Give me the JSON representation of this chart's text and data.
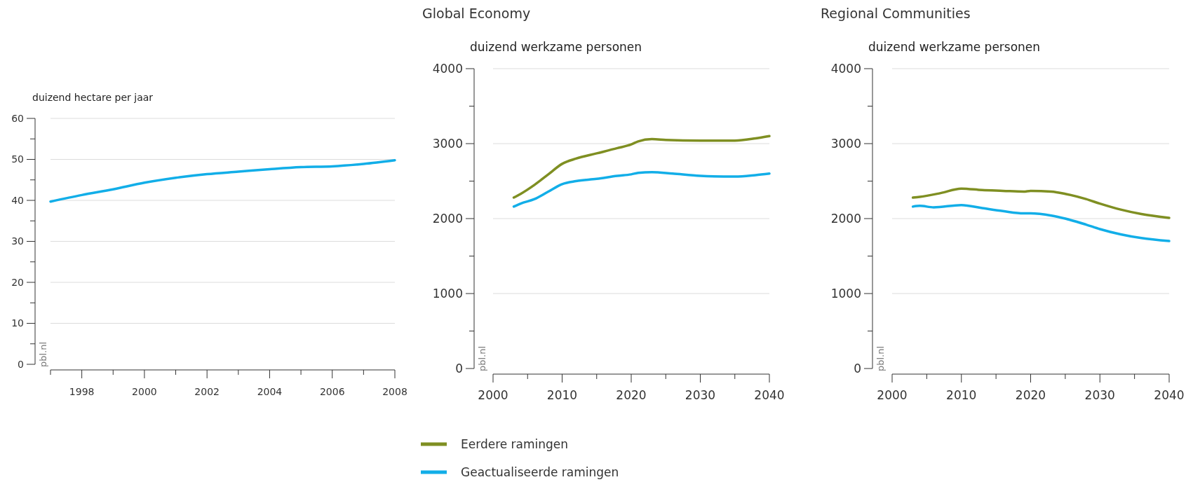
{
  "chart_data": [
    {
      "type": "line",
      "ylabel": "duizend hectare per jaar",
      "xlim": [
        1997,
        2008
      ],
      "xticks": [
        {
          "value": 1997,
          "label": null
        },
        1998,
        {
          "value": 1999,
          "label": null
        },
        2000,
        {
          "value": 2001,
          "label": null
        },
        2002,
        {
          "value": 2003,
          "label": null
        },
        2004,
        {
          "value": 2005,
          "label": null
        },
        2006,
        {
          "value": 2007,
          "label": null
        },
        2008
      ],
      "ylim": [
        0,
        60
      ],
      "yticks": [
        0,
        10,
        20,
        30,
        40,
        50,
        60
      ],
      "grid": "y",
      "legend": false,
      "annotations": [
        "pbl.nl"
      ],
      "series": [
        {
          "color": "#12aee8",
          "x": [
            1997,
            1998,
            1999,
            2000,
            2001,
            2002,
            2003,
            2004,
            2005,
            2006,
            2007,
            2008
          ],
          "values": [
            39.7,
            41.3,
            42.7,
            44.3,
            45.5,
            46.4,
            47.0,
            47.6,
            48.1,
            48.3,
            48.9,
            49.8
          ]
        }
      ]
    },
    {
      "type": "line",
      "title": "Global Economy",
      "ylabel": "duizend werkzame personen",
      "xlim": [
        2000,
        2040
      ],
      "xticks": [
        2000,
        {
          "value": 2005,
          "label": null
        },
        2010,
        {
          "value": 2015,
          "label": null
        },
        2020,
        {
          "value": 2025,
          "label": null
        },
        2030,
        {
          "value": 2035,
          "label": null
        },
        2040
      ],
      "ylim": [
        0,
        4000
      ],
      "yticks": [
        0,
        1000,
        2000,
        3000,
        4000
      ],
      "grid": "y",
      "legend": "bottom",
      "annotations": [
        "pbl.nl"
      ],
      "series": [
        {
          "name": "Eerdere ramingen",
          "color": "#7f8f22",
          "x": [
            2003,
            2004,
            2006,
            2008,
            2010,
            2012,
            2015,
            2018,
            2020,
            2021,
            2023,
            2025,
            2030,
            2035,
            2038,
            2040
          ],
          "values": [
            2280,
            2330,
            2450,
            2590,
            2730,
            2800,
            2870,
            2940,
            2990,
            3030,
            3060,
            3050,
            3040,
            3040,
            3070,
            3100
          ]
        },
        {
          "name": "Geactualiseerde ramingen",
          "color": "#12aee8",
          "x": [
            2003,
            2004,
            2006,
            2008,
            2010,
            2012,
            2015,
            2018,
            2020,
            2021,
            2023,
            2026,
            2030,
            2035,
            2038,
            2040
          ],
          "values": [
            2160,
            2200,
            2260,
            2360,
            2460,
            2500,
            2530,
            2570,
            2590,
            2610,
            2620,
            2600,
            2570,
            2560,
            2580,
            2600
          ]
        }
      ]
    },
    {
      "type": "line",
      "title": "Regional Communities",
      "ylabel": "duizend werkzame personen",
      "xlim": [
        2000,
        2040
      ],
      "xticks": [
        2000,
        {
          "value": 2005,
          "label": null
        },
        2010,
        {
          "value": 2015,
          "label": null
        },
        2020,
        {
          "value": 2025,
          "label": null
        },
        2030,
        {
          "value": 2035,
          "label": null
        },
        2040
      ],
      "ylim": [
        0,
        4000
      ],
      "yticks": [
        0,
        1000,
        2000,
        3000,
        4000
      ],
      "grid": "y",
      "legend": false,
      "annotations": [
        "pbl.nl"
      ],
      "series": [
        {
          "color": "#7f8f22",
          "x": [
            2003,
            2004,
            2007,
            2010,
            2013,
            2016,
            2019,
            2020,
            2023,
            2025,
            2028,
            2030,
            2033,
            2036,
            2040
          ],
          "values": [
            2280,
            2290,
            2340,
            2400,
            2380,
            2370,
            2360,
            2370,
            2360,
            2330,
            2260,
            2200,
            2120,
            2060,
            2010
          ]
        },
        {
          "color": "#12aee8",
          "x": [
            2003,
            2004,
            2006,
            2010,
            2013,
            2016,
            2019,
            2020,
            2023,
            2025,
            2028,
            2030,
            2033,
            2036,
            2040
          ],
          "values": [
            2160,
            2170,
            2150,
            2180,
            2140,
            2100,
            2070,
            2070,
            2040,
            2000,
            1920,
            1860,
            1790,
            1740,
            1700
          ]
        }
      ]
    }
  ]
}
